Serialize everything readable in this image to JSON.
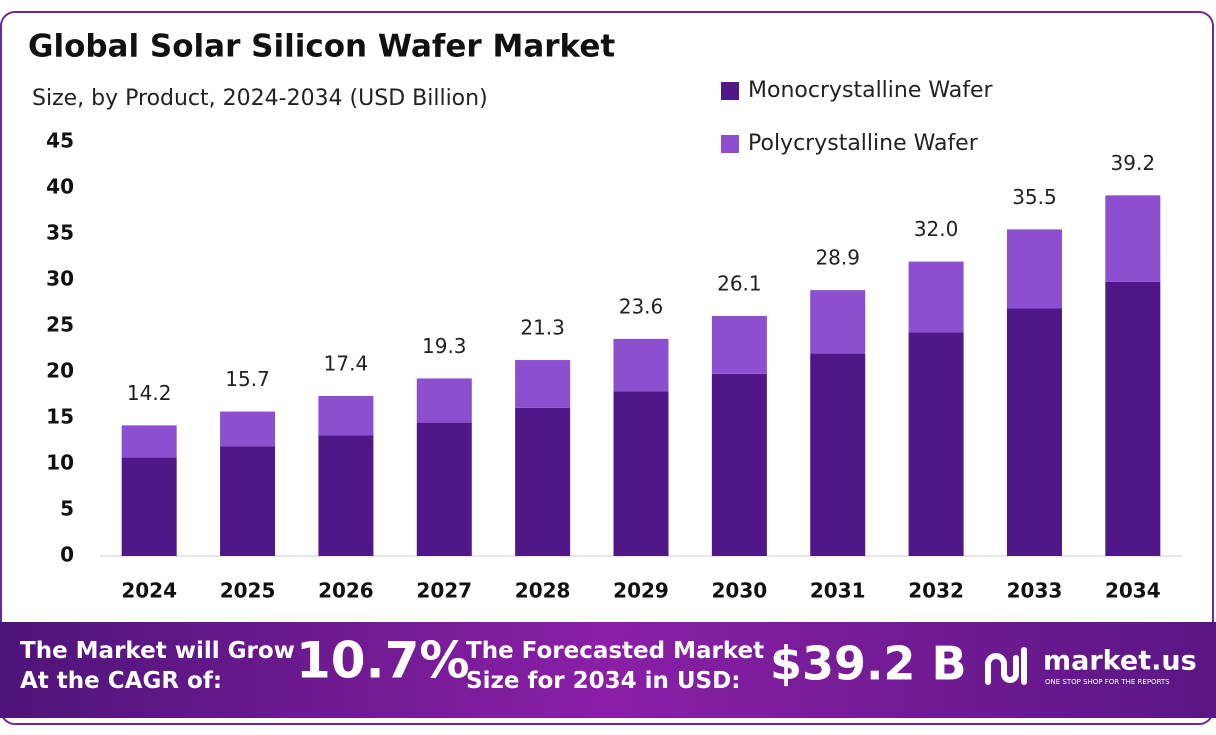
{
  "chart_data": {
    "type": "stacked_bar",
    "title": "Global Solar Silicon Wafer Market",
    "subtitle": "Size, by Product, 2024-2034 (USD Billion)",
    "categories": [
      "2024",
      "2025",
      "2026",
      "2027",
      "2028",
      "2029",
      "2030",
      "2031",
      "2032",
      "2033",
      "2034"
    ],
    "series": [
      {
        "name": "Monocrystalline Wafer",
        "color": "#4f1787",
        "values": [
          10.7,
          11.9,
          13.1,
          14.5,
          16.1,
          17.9,
          19.8,
          22.0,
          24.3,
          26.9,
          29.8
        ]
      },
      {
        "name": "Polycrystalline Wafer",
        "color": "#8b4fd0",
        "values": [
          3.5,
          3.8,
          4.3,
          4.8,
          5.2,
          5.7,
          6.3,
          6.9,
          7.7,
          8.6,
          9.4
        ]
      }
    ],
    "totals": [
      14.2,
      15.7,
      17.4,
      19.3,
      21.3,
      23.6,
      26.1,
      28.9,
      32.0,
      35.5,
      39.2
    ],
    "total_labels": [
      "14.2",
      "15.7",
      "17.4",
      "19.3",
      "21.3",
      "23.6",
      "26.1",
      "28.9",
      "32.0",
      "35.5",
      "39.2"
    ],
    "ylim": [
      0,
      45
    ],
    "yticks": [
      0,
      5,
      10,
      15,
      20,
      25,
      30,
      35,
      40,
      45
    ],
    "grid": false
  },
  "footer": {
    "cagr_text": [
      "The Market will Grow",
      "At the CAGR of:"
    ],
    "cagr": "10.7%",
    "forecast_text": [
      "The Forecasted Market",
      "Size for 2034 in USD:"
    ],
    "forecast_value": "$39.2 B",
    "brand": "market.us",
    "tagline": "ONE STOP SHOP FOR THE REPORTS"
  }
}
